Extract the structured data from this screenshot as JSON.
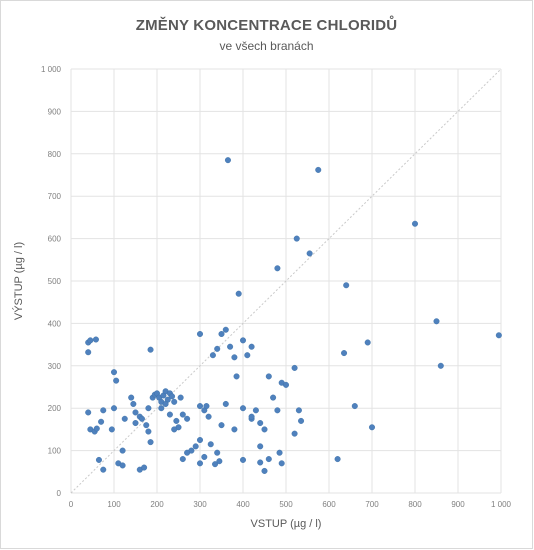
{
  "chart_data": {
    "type": "scatter",
    "title": "ZMĚNY KONCENTRACE CHLORIDŮ",
    "subtitle": "ve všech branách",
    "xlabel": "VSTUP (µg / l)",
    "ylabel": "VÝSTUP (µg / l)",
    "xlim": [
      0,
      1000
    ],
    "ylim": [
      0,
      1000
    ],
    "xticks": [
      "0",
      "100",
      "200",
      "300",
      "400",
      "500",
      "600",
      "700",
      "800",
      "900",
      "1 000"
    ],
    "yticks": [
      "0",
      "100",
      "200",
      "300",
      "400",
      "500",
      "600",
      "700",
      "800",
      "900",
      "1 000"
    ],
    "grid": true,
    "diagonal_reference": true,
    "marker_color": "#4f81bd",
    "points": [
      [
        40,
        355
      ],
      [
        45,
        360
      ],
      [
        58,
        362
      ],
      [
        40,
        332
      ],
      [
        45,
        150
      ],
      [
        55,
        145
      ],
      [
        60,
        152
      ],
      [
        70,
        168
      ],
      [
        75,
        195
      ],
      [
        40,
        190
      ],
      [
        65,
        78
      ],
      [
        75,
        55
      ],
      [
        100,
        285
      ],
      [
        105,
        265
      ],
      [
        100,
        200
      ],
      [
        95,
        150
      ],
      [
        110,
        70
      ],
      [
        120,
        65
      ],
      [
        120,
        100
      ],
      [
        125,
        175
      ],
      [
        140,
        225
      ],
      [
        145,
        210
      ],
      [
        150,
        190
      ],
      [
        150,
        165
      ],
      [
        160,
        180
      ],
      [
        165,
        175
      ],
      [
        175,
        160
      ],
      [
        180,
        145
      ],
      [
        185,
        338
      ],
      [
        185,
        120
      ],
      [
        190,
        225
      ],
      [
        195,
        232
      ],
      [
        200,
        235
      ],
      [
        205,
        225
      ],
      [
        210,
        215
      ],
      [
        215,
        230
      ],
      [
        220,
        240
      ],
      [
        225,
        220
      ],
      [
        230,
        235
      ],
      [
        235,
        228
      ],
      [
        240,
        215
      ],
      [
        180,
        200
      ],
      [
        250,
        155
      ],
      [
        240,
        150
      ],
      [
        255,
        225
      ],
      [
        270,
        175
      ],
      [
        260,
        185
      ],
      [
        280,
        100
      ],
      [
        290,
        110
      ],
      [
        300,
        125
      ],
      [
        310,
        195
      ],
      [
        320,
        180
      ],
      [
        300,
        70
      ],
      [
        310,
        85
      ],
      [
        325,
        115
      ],
      [
        340,
        95
      ],
      [
        345,
        75
      ],
      [
        335,
        68
      ],
      [
        300,
        205
      ],
      [
        315,
        205
      ],
      [
        330,
        325
      ],
      [
        340,
        340
      ],
      [
        350,
        375
      ],
      [
        360,
        385
      ],
      [
        300,
        375
      ],
      [
        370,
        345
      ],
      [
        380,
        320
      ],
      [
        385,
        275
      ],
      [
        390,
        470
      ],
      [
        400,
        360
      ],
      [
        410,
        325
      ],
      [
        420,
        345
      ],
      [
        400,
        200
      ],
      [
        430,
        195
      ],
      [
        420,
        175
      ],
      [
        440,
        165
      ],
      [
        450,
        150
      ],
      [
        400,
        78
      ],
      [
        440,
        72
      ],
      [
        450,
        52
      ],
      [
        460,
        80
      ],
      [
        440,
        110
      ],
      [
        460,
        275
      ],
      [
        470,
        225
      ],
      [
        490,
        260
      ],
      [
        500,
        255
      ],
      [
        480,
        530
      ],
      [
        520,
        140
      ],
      [
        520,
        295
      ],
      [
        530,
        195
      ],
      [
        535,
        170
      ],
      [
        525,
        600
      ],
      [
        555,
        565
      ],
      [
        575,
        762
      ],
      [
        365,
        785
      ],
      [
        635,
        330
      ],
      [
        640,
        490
      ],
      [
        660,
        205
      ],
      [
        690,
        355
      ],
      [
        700,
        155
      ],
      [
        620,
        80
      ],
      [
        800,
        635
      ],
      [
        850,
        405
      ],
      [
        860,
        300
      ],
      [
        995,
        372
      ],
      [
        160,
        55
      ],
      [
        170,
        60
      ],
      [
        230,
        185
      ],
      [
        260,
        80
      ],
      [
        270,
        95
      ],
      [
        360,
        210
      ],
      [
        350,
        160
      ],
      [
        380,
        150
      ],
      [
        420,
        180
      ],
      [
        485,
        95
      ],
      [
        490,
        70
      ],
      [
        480,
        195
      ],
      [
        210,
        200
      ],
      [
        220,
        210
      ],
      [
        245,
        170
      ]
    ]
  }
}
